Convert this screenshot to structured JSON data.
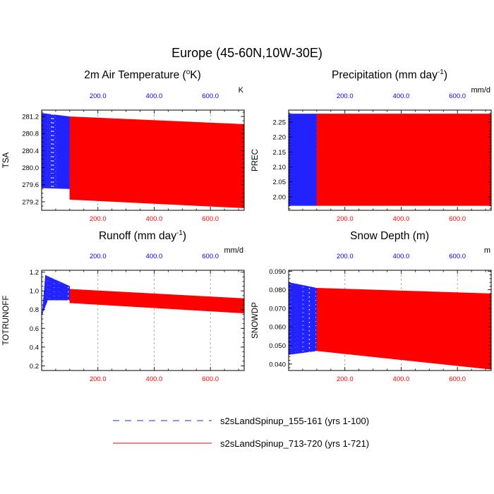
{
  "figure": {
    "title": "Europe (45-60N,10W-30E)"
  },
  "colors": {
    "blue_series": "#2222ff",
    "red_series": "#ff0000",
    "top_tick_labels": "#0000ff",
    "bottom_tick_labels": "#ff0000",
    "grid": "#999999"
  },
  "legend": [
    {
      "name": "s2sLandSpinup_155-161 (yrs 1-100)",
      "style": "dashed",
      "color": "#2222ff"
    },
    {
      "name": "s2sLandSpinup_713-720 (yrs 1-721)",
      "style": "solid",
      "color": "#ff0000"
    }
  ],
  "chart_data": [
    {
      "id": "tsa",
      "type": "line",
      "title": "2m Air Temperature (",
      "title_sup": "o",
      "title_tail": "K)",
      "units": "K",
      "ylabel": "TSA",
      "xlim": [
        0,
        720
      ],
      "ylim": [
        279.0,
        281.35
      ],
      "yticks": [
        279.2,
        279.6,
        280.0,
        280.4,
        280.8,
        281.2
      ],
      "yminor": 0.1,
      "ydecimals": 1,
      "xticks_top": [
        "200.0",
        "400.0",
        "600.0"
      ],
      "xticks_bottom": [
        "200.0",
        "400.0",
        "600.0"
      ],
      "xtick_values": [
        200,
        400,
        600
      ],
      "series": [
        {
          "name": "s2sLandSpinup_155-161 (yrs 1-100)",
          "years": [
            1,
            100
          ],
          "cycle_max_start": 281.28,
          "cycle_max_end": 281.2,
          "cycle_min_start": 279.52,
          "cycle_min_end": 279.5,
          "mean_level": 279.85
        },
        {
          "name": "s2sLandSpinup_713-720 (yrs 1-721)",
          "years": [
            100,
            721
          ],
          "cycle_max_start": 281.2,
          "cycle_max_end": 281.02,
          "cycle_min_start": 279.25,
          "cycle_min_end": 279.05,
          "mean_level_start": 279.83,
          "mean_level_end": 279.63
        }
      ]
    },
    {
      "id": "prec",
      "type": "line",
      "title": "Precipitation (mm day",
      "title_sup": "-1",
      "title_tail": ")",
      "units": "mm/d",
      "ylabel": "PREC",
      "xlim": [
        0,
        720
      ],
      "ylim": [
        1.955,
        2.29
      ],
      "yticks": [
        2.0,
        2.05,
        2.1,
        2.15,
        2.2,
        2.25
      ],
      "yminor": 0.01,
      "ydecimals": 2,
      "xticks_top": [
        "200.0",
        "400.0",
        "600.0"
      ],
      "xticks_bottom": [
        "200.0",
        "400.0",
        "600.0"
      ],
      "xtick_values": [
        200,
        400,
        600
      ],
      "series": [
        {
          "name": "s2sLandSpinup_155-161 (yrs 1-100)",
          "years": [
            1,
            100
          ],
          "cycle_max_start": 2.278,
          "cycle_max_end": 2.278,
          "cycle_min_start": 1.97,
          "cycle_min_end": 1.97,
          "mean_level": 2.077
        },
        {
          "name": "s2sLandSpinup_713-720 (yrs 1-721)",
          "years": [
            100,
            721
          ],
          "cycle_max_start": 2.278,
          "cycle_max_end": 2.278,
          "cycle_min_start": 1.97,
          "cycle_min_end": 1.97,
          "mean_level_start": 2.077,
          "mean_level_end": 2.077
        }
      ]
    },
    {
      "id": "runoff",
      "type": "line",
      "title": "Runoff (mm day",
      "title_sup": "-1",
      "title_tail": ")",
      "units": "mm/d",
      "ylabel": "TOTRUNOFF",
      "xlim": [
        0,
        720
      ],
      "ylim": [
        0.15,
        1.22
      ],
      "yticks": [
        0.2,
        0.4,
        0.6,
        0.8,
        1.0,
        1.2
      ],
      "yminor": 0.05,
      "ydecimals": 1,
      "xticks_top": [
        "200.0",
        "400.0",
        "600.0"
      ],
      "xticks_bottom": [
        "200.0",
        "400.0",
        "600.0"
      ],
      "xtick_values": [
        200,
        400,
        600
      ],
      "series": [
        {
          "name": "s2sLandSpinup_155-161 (yrs 1-100)",
          "years": [
            1,
            100
          ],
          "cycle_max_start": 1.17,
          "cycle_max_end": 1.05,
          "cycle_min_start": 0.75,
          "cycle_min_end": 0.9,
          "spinup": true
        },
        {
          "name": "s2sLandSpinup_713-720 (yrs 1-721)",
          "years": [
            100,
            721
          ],
          "cycle_max_start": 1.02,
          "cycle_max_end": 0.92,
          "cycle_min_start": 0.87,
          "cycle_min_end": 0.76
        }
      ]
    },
    {
      "id": "snowdp",
      "type": "line",
      "title": "Snow Depth (m)",
      "title_sup": "",
      "title_tail": "",
      "units": "m",
      "ylabel": "SNOWDP",
      "xlim": [
        0,
        720
      ],
      "ylim": [
        0.0365,
        0.0905
      ],
      "yticks": [
        0.04,
        0.05,
        0.06,
        0.07,
        0.08,
        0.09
      ],
      "yminor": 0.002,
      "ydecimals": 3,
      "xticks_top": [
        "200.0",
        "400.0",
        "600.0"
      ],
      "xticks_bottom": [
        "200.0",
        "400.0",
        "600.0"
      ],
      "xtick_values": [
        200,
        400,
        600
      ],
      "series": [
        {
          "name": "s2sLandSpinup_155-161 (yrs 1-100)",
          "years": [
            1,
            100
          ],
          "cycle_max_start": 0.084,
          "cycle_max_end": 0.081,
          "cycle_min_start": 0.045,
          "cycle_min_end": 0.047,
          "mean_level_start": 0.077,
          "mean_level_end": 0.075
        },
        {
          "name": "s2sLandSpinup_713-720 (yrs 1-721)",
          "years": [
            100,
            721
          ],
          "cycle_max_start": 0.081,
          "cycle_max_end": 0.078,
          "cycle_min_start": 0.047,
          "cycle_min_end": 0.037,
          "mean_level_start": 0.075,
          "mean_level_end": 0.07
        }
      ]
    }
  ]
}
